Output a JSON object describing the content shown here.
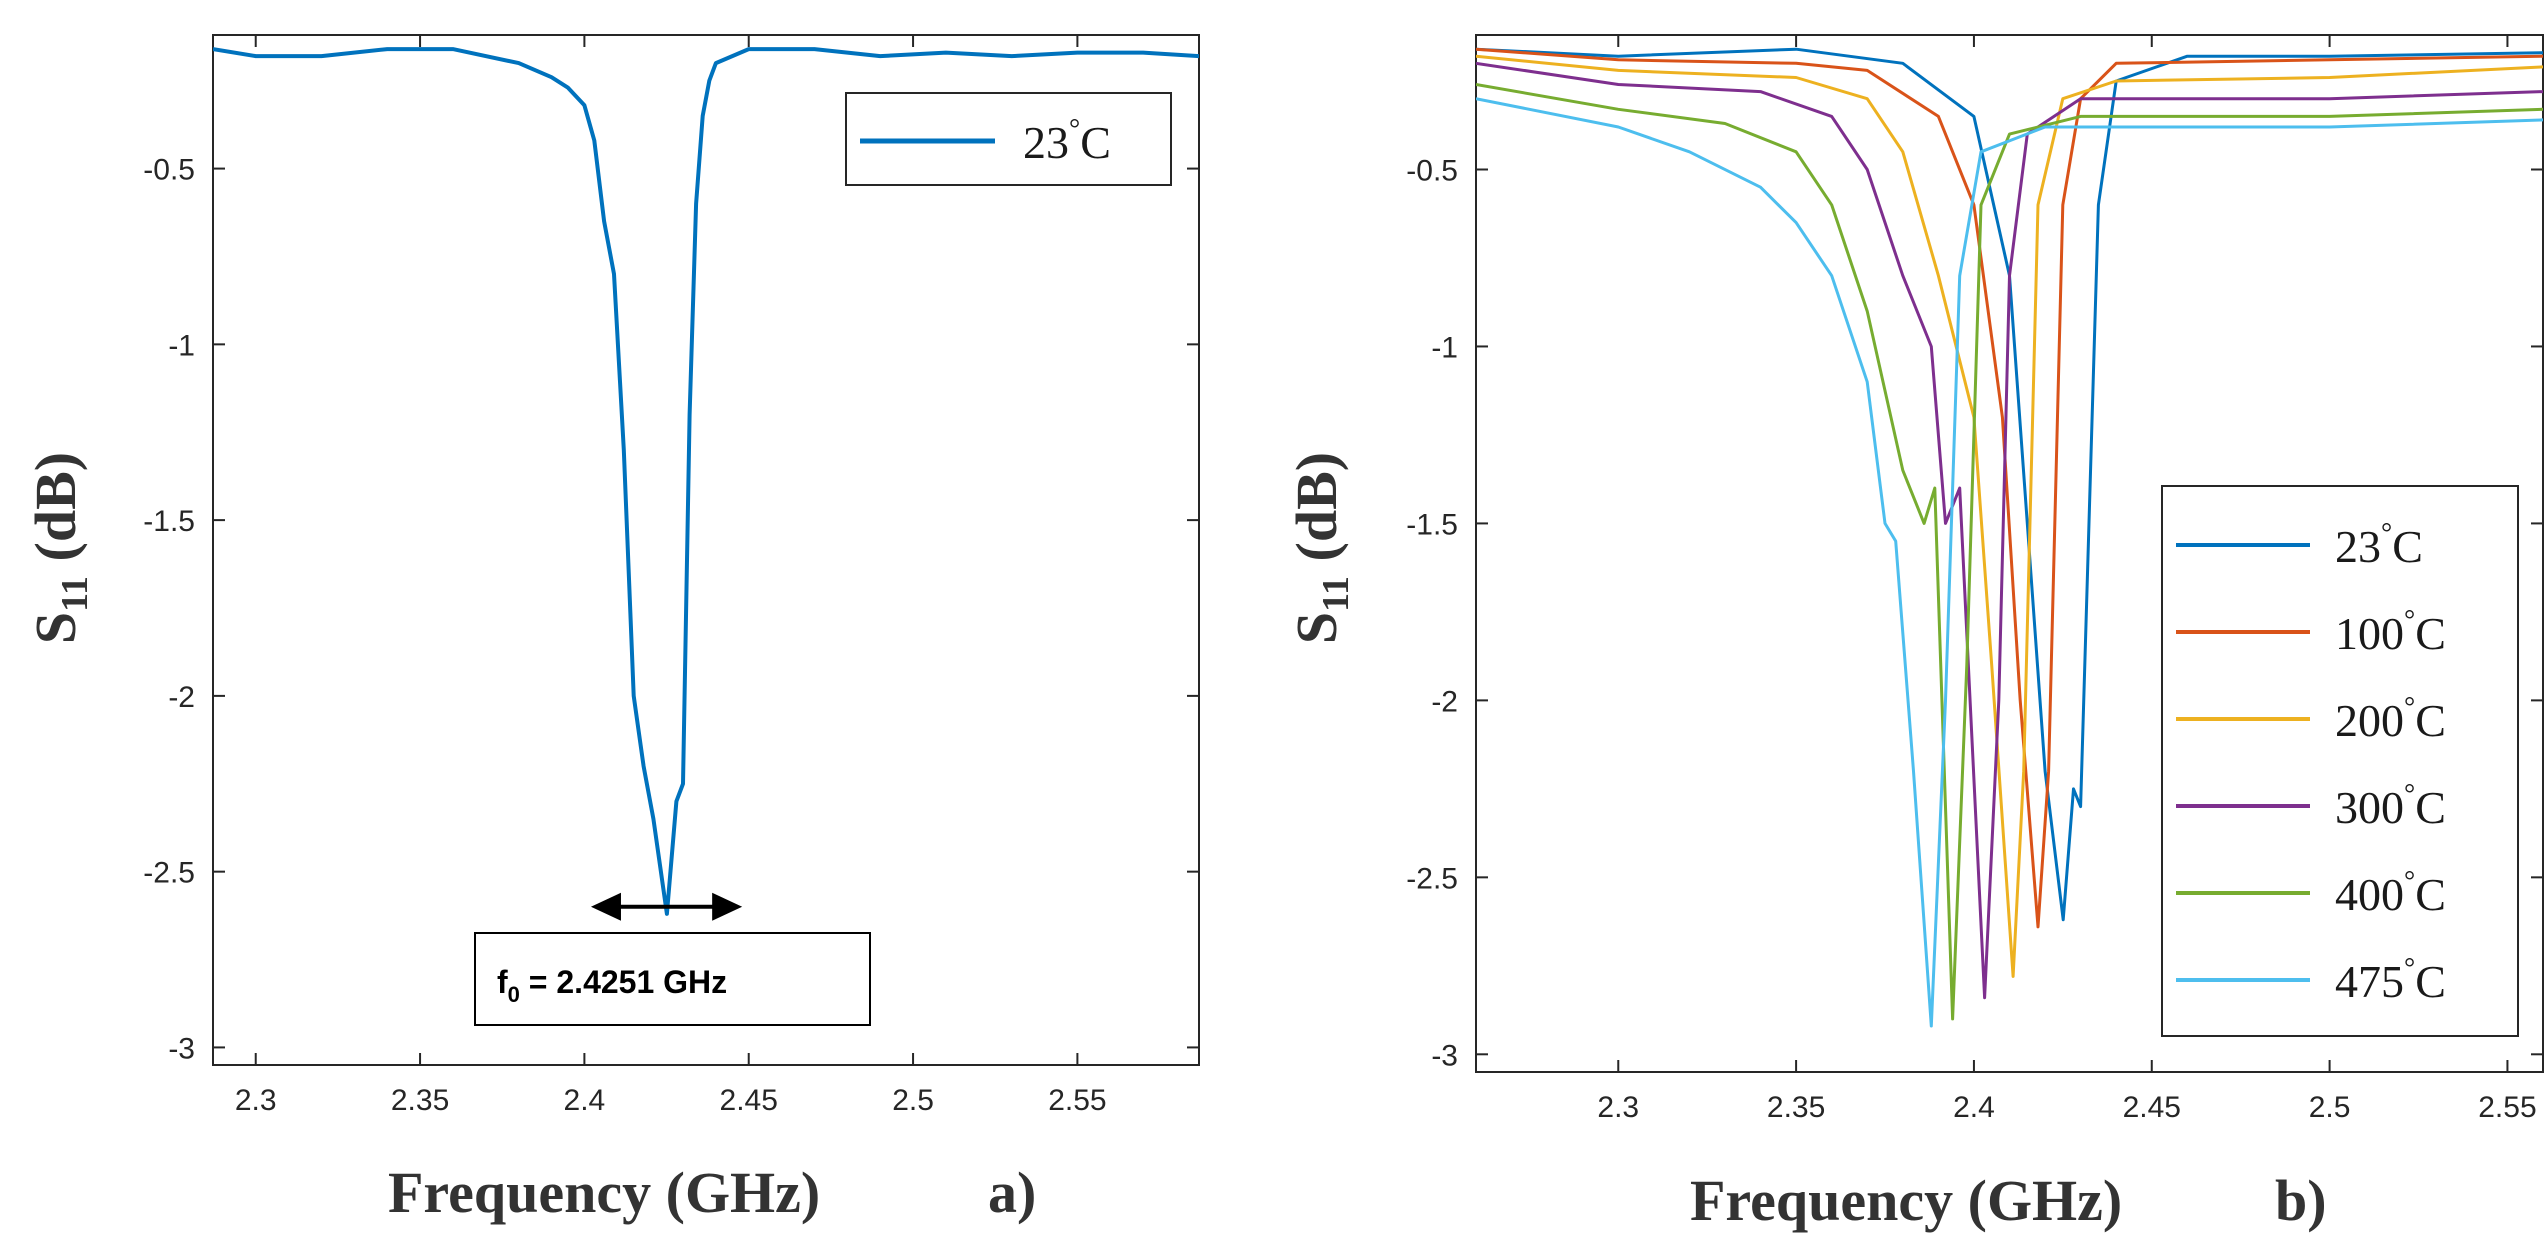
{
  "chart_data": [
    {
      "panel": "a)",
      "type": "line",
      "xlabel": "Frequency (GHz)",
      "ylabel_main": "S",
      "ylabel_sub": "11",
      "ylabel_unit": " (dB)",
      "xlim": [
        2.287,
        2.587
      ],
      "ylim": [
        -3.05,
        -0.12
      ],
      "xticks": [
        2.3,
        2.35,
        2.4,
        2.45,
        2.5,
        2.55
      ],
      "xtick_labels": [
        "2.3",
        "2.35",
        "2.4",
        "2.45",
        "2.5",
        "2.55"
      ],
      "yticks": [
        -0.5,
        -1,
        -1.5,
        -2,
        -2.5,
        -3
      ],
      "ytick_labels": [
        "-0.5",
        "-1",
        "-1.5",
        "-2",
        "-2.5",
        "-3"
      ],
      "legend_position": "top-right",
      "series": [
        {
          "name": "23",
          "degree": "°",
          "unit": "C",
          "color": "#0072BD",
          "x": [
            2.287,
            2.3,
            2.32,
            2.34,
            2.36,
            2.38,
            2.39,
            2.395,
            2.4,
            2.403,
            2.406,
            2.409,
            2.412,
            2.415,
            2.418,
            2.421,
            2.4251,
            2.428,
            2.43,
            2.432,
            2.434,
            2.436,
            2.438,
            2.44,
            2.45,
            2.47,
            2.49,
            2.51,
            2.53,
            2.55,
            2.57,
            2.587
          ],
          "values": [
            -0.16,
            -0.18,
            -0.18,
            -0.16,
            -0.16,
            -0.2,
            -0.24,
            -0.27,
            -0.32,
            -0.42,
            -0.65,
            -0.8,
            -1.3,
            -2.0,
            -2.2,
            -2.35,
            -2.62,
            -2.3,
            -2.25,
            -1.2,
            -0.6,
            -0.35,
            -0.25,
            -0.2,
            -0.16,
            -0.16,
            -0.18,
            -0.17,
            -0.18,
            -0.17,
            -0.17,
            -0.18
          ]
        }
      ],
      "annotation": {
        "arrow_from": 2.402,
        "arrow_to": 2.448,
        "arrow_y": -2.6,
        "label_main": "f",
        "label_sub": "0",
        "label_rest": " = 2.4251 GHz"
      }
    },
    {
      "panel": "b)",
      "type": "line",
      "xlabel": "Frequency (GHz)",
      "ylabel_main": "S",
      "ylabel_sub": "11",
      "ylabel_unit": " (dB)",
      "xlim": [
        2.26,
        2.56
      ],
      "ylim": [
        -3.05,
        -0.12
      ],
      "xticks": [
        2.3,
        2.35,
        2.4,
        2.45,
        2.5,
        2.55
      ],
      "xtick_labels": [
        "2.3",
        "2.35",
        "2.4",
        "2.45",
        "2.5",
        "2.55"
      ],
      "yticks": [
        -0.5,
        -1,
        -1.5,
        -2,
        -2.5,
        -3
      ],
      "ytick_labels": [
        "-0.5",
        "-1",
        "-1.5",
        "-2",
        "-2.5",
        "-3"
      ],
      "legend_position": "bottom-right",
      "series": [
        {
          "name": "23",
          "degree": "°",
          "unit": "C",
          "color": "#0072BD",
          "x": [
            2.26,
            2.3,
            2.35,
            2.38,
            2.4,
            2.41,
            2.415,
            2.42,
            2.4251,
            2.428,
            2.43,
            2.435,
            2.44,
            2.46,
            2.5,
            2.56
          ],
          "values": [
            -0.16,
            -0.18,
            -0.16,
            -0.2,
            -0.35,
            -0.8,
            -1.5,
            -2.2,
            -2.62,
            -2.25,
            -2.3,
            -0.6,
            -0.25,
            -0.18,
            -0.18,
            -0.17
          ]
        },
        {
          "name": "100",
          "degree": "°",
          "unit": "C",
          "color": "#D95319",
          "x": [
            2.26,
            2.3,
            2.35,
            2.37,
            2.39,
            2.4,
            2.408,
            2.413,
            2.418,
            2.421,
            2.425,
            2.43,
            2.44,
            2.5,
            2.56
          ],
          "values": [
            -0.16,
            -0.19,
            -0.2,
            -0.22,
            -0.35,
            -0.6,
            -1.2,
            -2.0,
            -2.64,
            -2.2,
            -0.6,
            -0.3,
            -0.2,
            -0.19,
            -0.18
          ]
        },
        {
          "name": "200",
          "degree": "°",
          "unit": "C",
          "color": "#EDB120",
          "x": [
            2.26,
            2.3,
            2.35,
            2.37,
            2.38,
            2.39,
            2.4,
            2.405,
            2.411,
            2.414,
            2.418,
            2.425,
            2.44,
            2.5,
            2.56
          ],
          "values": [
            -0.18,
            -0.22,
            -0.24,
            -0.3,
            -0.45,
            -0.8,
            -1.2,
            -1.9,
            -2.78,
            -2.2,
            -0.6,
            -0.3,
            -0.25,
            -0.24,
            -0.21
          ]
        },
        {
          "name": "300",
          "degree": "°",
          "unit": "C",
          "color": "#7E2F8E",
          "x": [
            2.26,
            2.3,
            2.34,
            2.36,
            2.37,
            2.38,
            2.388,
            2.392,
            2.396,
            2.403,
            2.407,
            2.41,
            2.415,
            2.43,
            2.5,
            2.56
          ],
          "values": [
            -0.2,
            -0.26,
            -0.28,
            -0.35,
            -0.5,
            -0.8,
            -1.0,
            -1.5,
            -1.4,
            -2.84,
            -2.0,
            -0.8,
            -0.4,
            -0.3,
            -0.3,
            -0.28
          ]
        },
        {
          "name": "400",
          "degree": "°",
          "unit": "C",
          "color": "#77AC30",
          "x": [
            2.26,
            2.3,
            2.33,
            2.35,
            2.36,
            2.37,
            2.38,
            2.386,
            2.389,
            2.394,
            2.398,
            2.402,
            2.41,
            2.43,
            2.5,
            2.56
          ],
          "values": [
            -0.26,
            -0.33,
            -0.37,
            -0.45,
            -0.6,
            -0.9,
            -1.35,
            -1.5,
            -1.4,
            -2.9,
            -1.9,
            -0.6,
            -0.4,
            -0.35,
            -0.35,
            -0.33
          ]
        },
        {
          "name": "475",
          "degree": "°",
          "unit": "C",
          "color": "#4DBEEE",
          "x": [
            2.26,
            2.3,
            2.32,
            2.34,
            2.35,
            2.36,
            2.37,
            2.375,
            2.378,
            2.383,
            2.388,
            2.392,
            2.396,
            2.402,
            2.42,
            2.5,
            2.56
          ],
          "values": [
            -0.3,
            -0.38,
            -0.45,
            -0.55,
            -0.65,
            -0.8,
            -1.1,
            -1.5,
            -1.55,
            -2.2,
            -2.92,
            -2.0,
            -0.8,
            -0.45,
            -0.38,
            -0.38,
            -0.36
          ]
        }
      ]
    }
  ]
}
